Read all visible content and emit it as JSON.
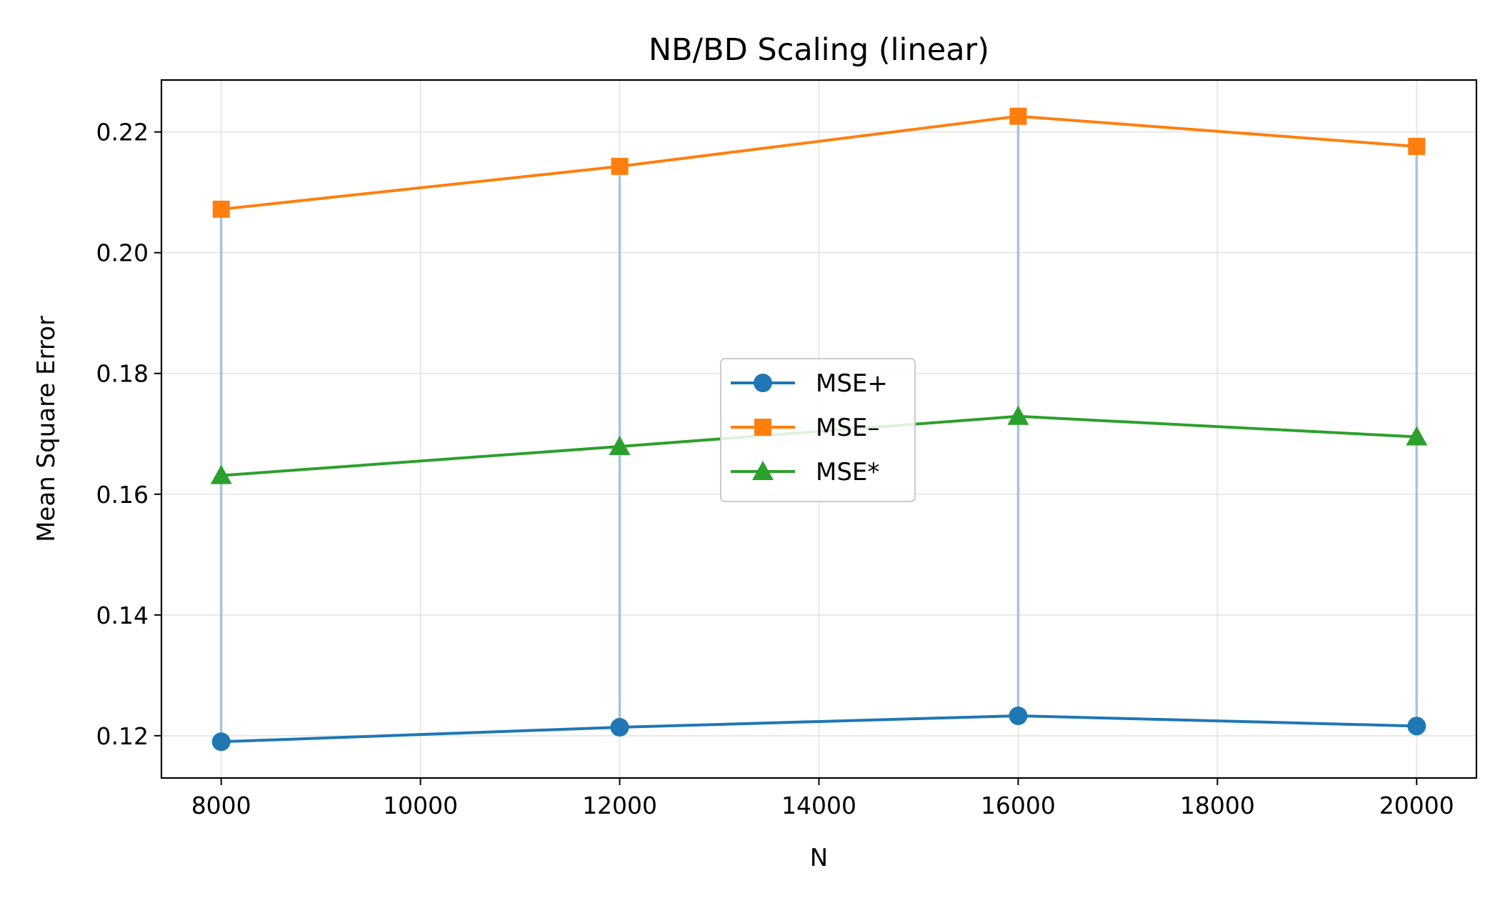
{
  "chart_data": {
    "type": "line",
    "title": "NB/BD Scaling (linear)",
    "xlabel": "N",
    "ylabel": "Mean Square Error",
    "x": [
      8000,
      12000,
      16000,
      20000
    ],
    "xlim": [
      7400,
      20600
    ],
    "ylim": [
      0.113,
      0.2286
    ],
    "xticks": [
      8000,
      10000,
      12000,
      14000,
      16000,
      18000,
      20000
    ],
    "xtick_labels": [
      "8000",
      "10000",
      "12000",
      "14000",
      "16000",
      "18000",
      "20000"
    ],
    "yticks": [
      0.12,
      0.14,
      0.16,
      0.18,
      0.2,
      0.22
    ],
    "ytick_labels": [
      "0.12",
      "0.14",
      "0.16",
      "0.18",
      "0.20",
      "0.22"
    ],
    "grid": true,
    "legend_position": "center",
    "series": [
      {
        "name": "MSE+",
        "values": [
          0.119,
          0.1214,
          0.1233,
          0.1216
        ],
        "color": "#1f77b4",
        "marker": "circle"
      },
      {
        "name": "MSE–",
        "values": [
          0.2072,
          0.2143,
          0.2226,
          0.2176
        ],
        "color": "#ff7f0e",
        "marker": "square"
      },
      {
        "name": "MSE*",
        "values": [
          0.1631,
          0.1679,
          0.1729,
          0.1695
        ],
        "color": "#2ca02c",
        "marker": "triangle"
      }
    ],
    "error_bars": {
      "color": "#a6c4dc",
      "lower": [
        0.119,
        0.1214,
        0.1233,
        0.1216
      ],
      "upper": [
        0.2072,
        0.2143,
        0.2226,
        0.2176
      ]
    }
  }
}
